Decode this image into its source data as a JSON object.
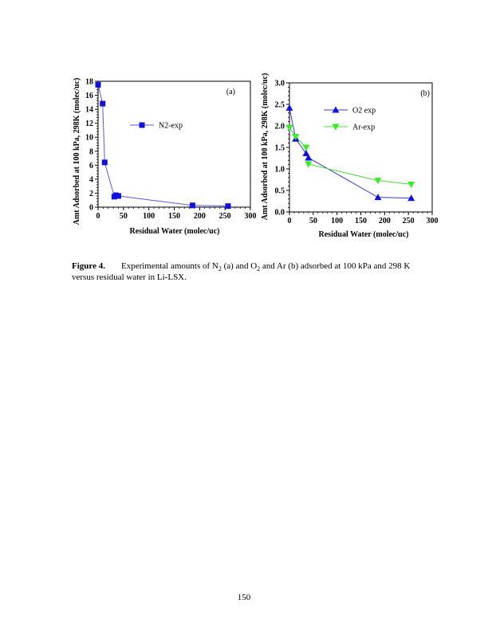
{
  "chart_data": [
    {
      "type": "line",
      "panel_label": "(a)",
      "xlabel": "Residual Water (molec/uc)",
      "ylabel": "Amt Adsorbed at 100 kPa, 298K (molec/uc)",
      "xlim": [
        0,
        300
      ],
      "ylim": [
        0,
        18
      ],
      "xticks": [
        0,
        50,
        100,
        150,
        200,
        250,
        300
      ],
      "yticks": [
        0,
        2,
        4,
        6,
        8,
        10,
        12,
        14,
        16,
        18
      ],
      "ytick_labels": [
        "0",
        "2",
        "4",
        "6",
        "8",
        "10",
        "12",
        "14",
        "16",
        "18"
      ],
      "legend_position": "upper-middle",
      "series": [
        {
          "name": "N2-exp",
          "marker": "square",
          "color": "#1111dd",
          "line_color": "#5a5ad6",
          "x": [
            0,
            9,
            13,
            32,
            35,
            40,
            186,
            256
          ],
          "y": [
            17.5,
            14.8,
            6.4,
            1.5,
            1.7,
            1.6,
            0.25,
            0.15
          ]
        }
      ]
    },
    {
      "type": "line",
      "panel_label": "(b)",
      "xlabel": "Residual Water (molec/uc)",
      "ylabel": "Amt Adsorbed at 100 kPa, 298K (molec/uc)",
      "xlim": [
        0,
        300
      ],
      "ylim": [
        0,
        3.0
      ],
      "xticks": [
        0,
        50,
        100,
        150,
        200,
        250,
        300
      ],
      "yticks": [
        0,
        0.5,
        1.0,
        1.5,
        2.0,
        2.5,
        3.0
      ],
      "ytick_labels": [
        "0.0",
        "0.5",
        "1.0",
        "1.5",
        "2.0",
        "2.5",
        "3.0"
      ],
      "legend_position": "upper-middle",
      "series": [
        {
          "name": "O2 exp",
          "marker": "triangle-up",
          "color": "#1111dd",
          "line_color": "#3a3ad6",
          "x": [
            0,
            13,
            35,
            40,
            186,
            256
          ],
          "y": [
            2.42,
            1.7,
            1.36,
            1.26,
            0.34,
            0.32
          ]
        },
        {
          "name": "Ar-exp",
          "marker": "triangle-down",
          "color": "#33ee22",
          "line_color": "#44dd33",
          "x": [
            0,
            13,
            35,
            40,
            186,
            256
          ],
          "y": [
            1.96,
            1.75,
            1.5,
            1.11,
            0.73,
            0.64
          ]
        }
      ]
    }
  ],
  "caption": {
    "label": "Figure 4.",
    "text_1": "Experimental amounts of N",
    "sub_1": "2",
    "text_2": " (a) and O",
    "sub_2": "2",
    "text_3": " and Ar (b) adsorbed at 100 kPa and 298 K versus residual water in Li-LSX."
  },
  "page_number": "150"
}
